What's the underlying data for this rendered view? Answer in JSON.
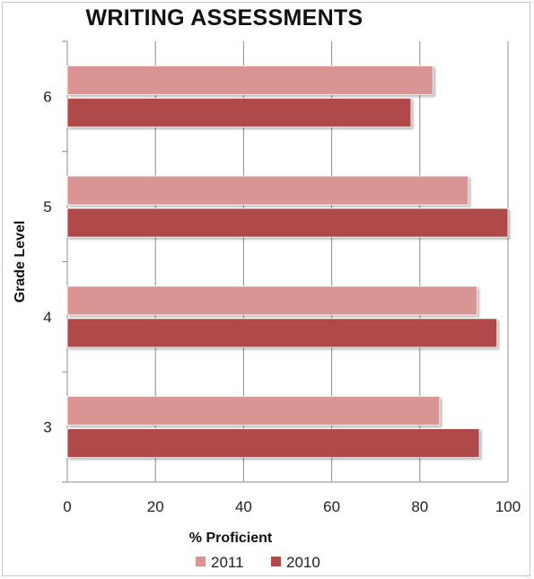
{
  "chart_data": {
    "type": "bar",
    "orientation": "horizontal",
    "title": "WRITING ASSESSMENTS",
    "xlabel": "% Proficient",
    "ylabel": "Grade Level",
    "xlim": [
      0,
      100
    ],
    "xticks": [
      "0",
      "20",
      "40",
      "60",
      "80",
      "100"
    ],
    "categories": [
      "6",
      "5",
      "4",
      "3"
    ],
    "series": [
      {
        "name": "2011",
        "color": "#d99594",
        "values": [
          83,
          91,
          93,
          84.5
        ]
      },
      {
        "name": "2010",
        "color": "#b04a4a",
        "values": [
          78,
          100,
          97.5,
          93.5
        ]
      }
    ],
    "grid": true,
    "legend_position": "bottom"
  }
}
